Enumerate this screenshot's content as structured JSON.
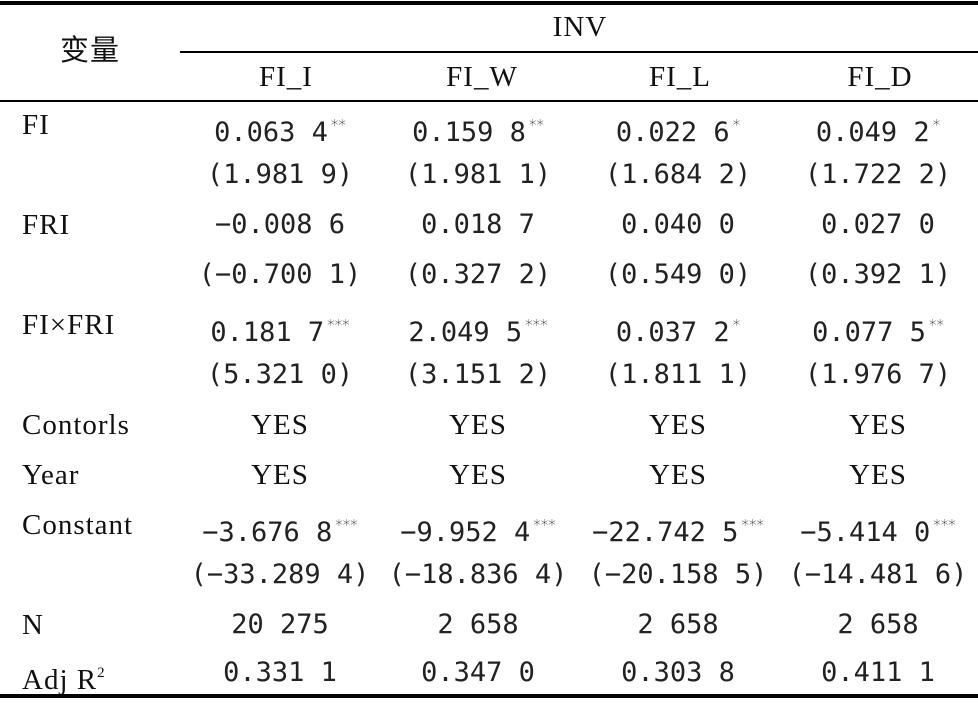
{
  "table": {
    "corner_label": "变量",
    "group_header": "INV",
    "columns": [
      "FI_I",
      "FI_W",
      "FI_L",
      "FI_D"
    ],
    "rows": [
      {
        "label": "FI",
        "cells": [
          {
            "v": "0.063 4",
            "s": "**"
          },
          {
            "v": "0.159 8",
            "s": "**"
          },
          {
            "v": "0.022 6",
            "s": "*"
          },
          {
            "v": "0.049 2",
            "s": "*"
          }
        ]
      },
      {
        "label": "",
        "cells": [
          {
            "v": "(1.981 9)",
            "s": ""
          },
          {
            "v": "(1.981 1)",
            "s": ""
          },
          {
            "v": "(1.684 2)",
            "s": ""
          },
          {
            "v": "(1.722 2)",
            "s": ""
          }
        ]
      },
      {
        "label": "FRI",
        "cells": [
          {
            "v": "−0.008 6",
            "s": ""
          },
          {
            "v": "0.018 7",
            "s": ""
          },
          {
            "v": "0.040 0",
            "s": ""
          },
          {
            "v": "0.027 0",
            "s": ""
          }
        ]
      },
      {
        "label": "",
        "cells": [
          {
            "v": "(−0.700 1)",
            "s": ""
          },
          {
            "v": "(0.327 2)",
            "s": ""
          },
          {
            "v": "(0.549 0)",
            "s": ""
          },
          {
            "v": "(0.392 1)",
            "s": ""
          }
        ]
      },
      {
        "label": "FI×FRI",
        "cells": [
          {
            "v": "0.181 7",
            "s": "***"
          },
          {
            "v": "2.049 5",
            "s": "***"
          },
          {
            "v": "0.037 2",
            "s": "*"
          },
          {
            "v": "0.077 5",
            "s": "**"
          }
        ]
      },
      {
        "label": "",
        "cells": [
          {
            "v": "(5.321 0)",
            "s": ""
          },
          {
            "v": "(3.151 2)",
            "s": ""
          },
          {
            "v": "(1.811 1)",
            "s": ""
          },
          {
            "v": "(1.976 7)",
            "s": ""
          }
        ]
      },
      {
        "label": "Contorls",
        "cells": [
          {
            "v": "YES",
            "s": ""
          },
          {
            "v": "YES",
            "s": ""
          },
          {
            "v": "YES",
            "s": ""
          },
          {
            "v": "YES",
            "s": ""
          }
        ]
      },
      {
        "label": "Year",
        "cells": [
          {
            "v": "YES",
            "s": ""
          },
          {
            "v": "YES",
            "s": ""
          },
          {
            "v": "YES",
            "s": ""
          },
          {
            "v": "YES",
            "s": ""
          }
        ]
      },
      {
        "label": "Constant",
        "cells": [
          {
            "v": "−3.676 8",
            "s": "***"
          },
          {
            "v": "−9.952 4",
            "s": "***"
          },
          {
            "v": "−22.742 5",
            "s": "***"
          },
          {
            "v": "−5.414 0",
            "s": "***"
          }
        ]
      },
      {
        "label": "",
        "cells": [
          {
            "v": "(−33.289 4)",
            "s": ""
          },
          {
            "v": "(−18.836 4)",
            "s": ""
          },
          {
            "v": "(−20.158 5)",
            "s": ""
          },
          {
            "v": "(−14.481 6)",
            "s": ""
          }
        ]
      },
      {
        "label": "N",
        "cells": [
          {
            "v": "20 275",
            "s": ""
          },
          {
            "v": "2 658",
            "s": ""
          },
          {
            "v": "2 658",
            "s": ""
          },
          {
            "v": "2 658",
            "s": ""
          }
        ]
      }
    ],
    "adj_row": {
      "label": "Adj R",
      "label_sup": "2",
      "cells": [
        "0.331 1",
        "0.347 0",
        "0.303 8",
        "0.411 1"
      ]
    }
  }
}
